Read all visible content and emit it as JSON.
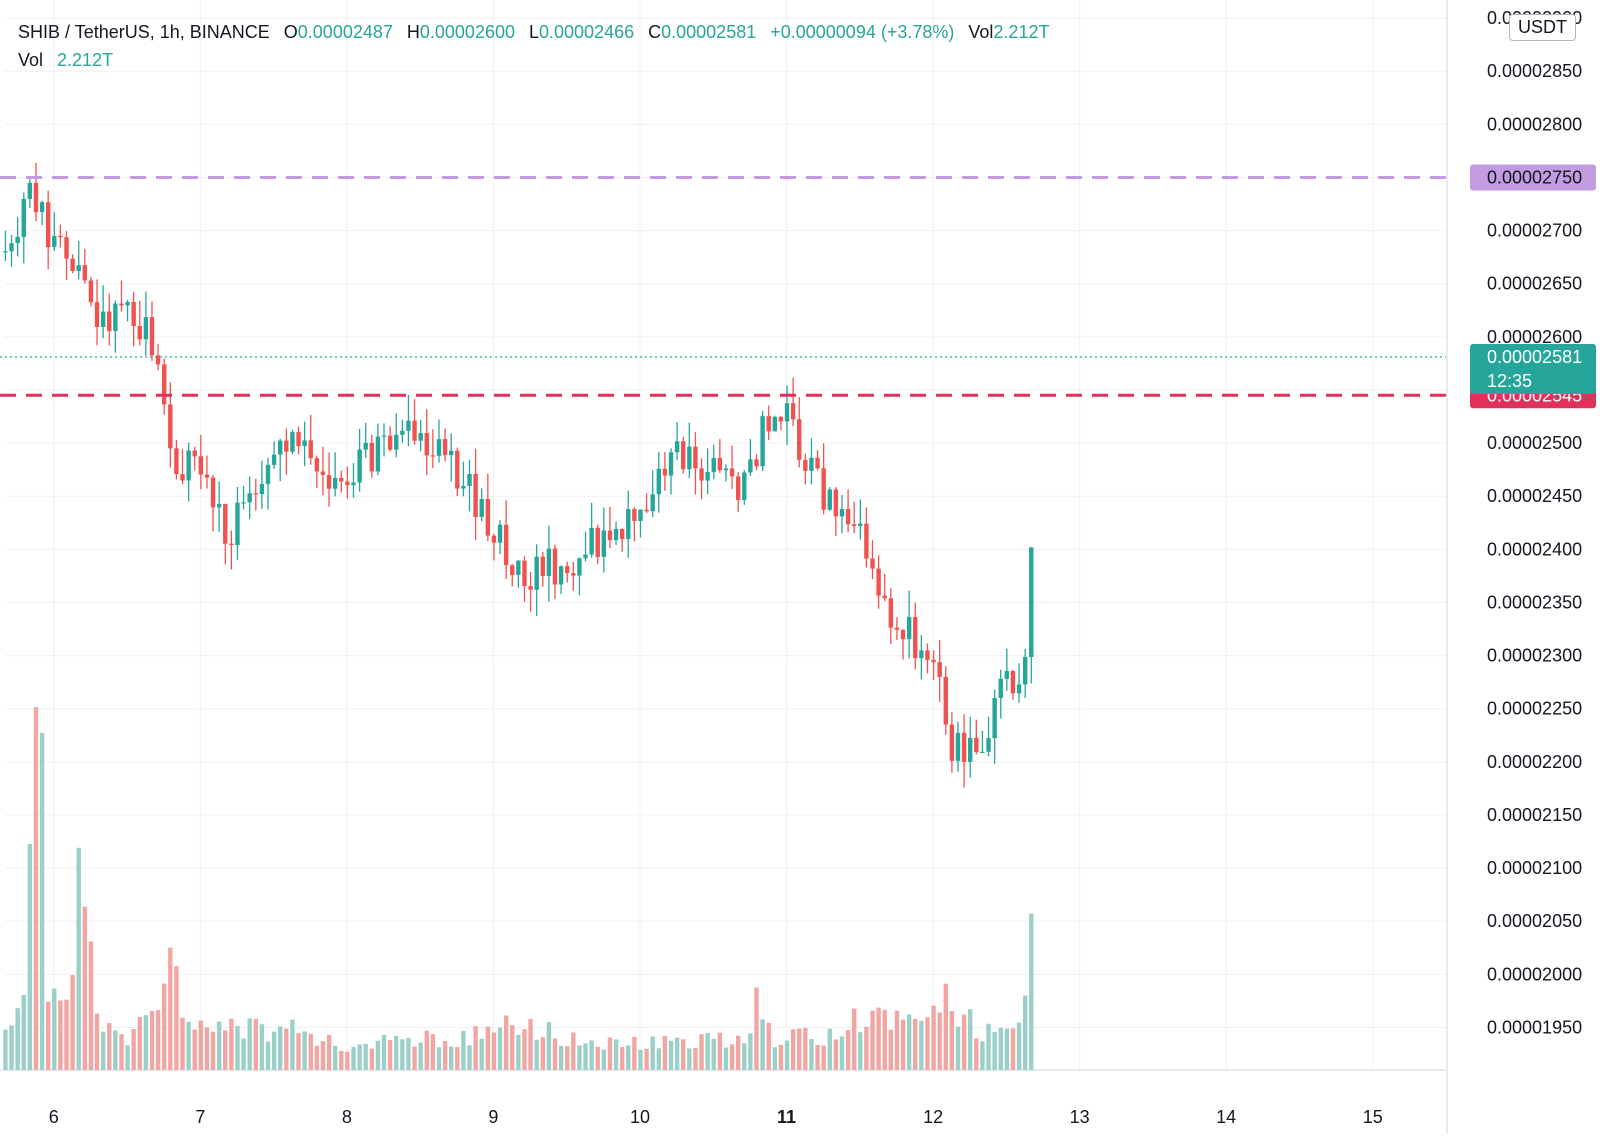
{
  "legend": {
    "pair": "SHIB / TetherUS, 1h, BINANCE",
    "o_label": "O",
    "o_value": "0.00002487",
    "h_label": "H",
    "h_value": "0.00002600",
    "l_label": "L",
    "l_value": "0.00002466",
    "c_label": "C",
    "c_value": "0.00002581",
    "change": "+0.00000094 (+3.78%)",
    "vol_label": "Vol",
    "vol_value": "2.212T",
    "vol_row_label": "Vol",
    "vol_row_value": "2.212T"
  },
  "unit_badge": "USDT",
  "colors": {
    "up": "#26a69a",
    "down": "#ef5350",
    "up_volume": "#9ad0c8",
    "down_volume": "#f2a6a4",
    "resistance": "#c39be0",
    "support": "#e0315a",
    "grid": "#eef0f3",
    "text": "#131722"
  },
  "chart_data": {
    "type": "candlestick",
    "title": "SHIB / TetherUS, 1h, BINANCE",
    "xlabel": "",
    "ylabel": "",
    "x_ticks": [
      "6",
      "7",
      "8",
      "9",
      "10",
      "11",
      "12",
      "13",
      "14",
      "15"
    ],
    "x_tick_values": [
      6,
      7,
      8,
      9,
      10,
      11,
      12,
      13,
      14,
      15
    ],
    "bold_ticks": [
      "11"
    ],
    "y_ticks": [
      "0.00001950",
      "0.00002000",
      "0.00002050",
      "0.00002100",
      "0.00002150",
      "0.00002200",
      "0.00002250",
      "0.00002300",
      "0.00002350",
      "0.00002400",
      "0.00002450",
      "0.00002500",
      "0.00002550",
      "0.00002600",
      "0.00002650",
      "0.00002700",
      "0.00002750",
      "0.00002800",
      "0.00002850",
      "0.00002900"
    ],
    "y_tick_values": [
      1.95e-05,
      2e-05,
      2.05e-05,
      2.1e-05,
      2.15e-05,
      2.2e-05,
      2.25e-05,
      2.3e-05,
      2.35e-05,
      2.4e-05,
      2.45e-05,
      2.5e-05,
      2.55e-05,
      2.6e-05,
      2.65e-05,
      2.7e-05,
      2.75e-05,
      2.8e-05,
      2.85e-05,
      2.9e-05
    ],
    "visible_y_ticks": [
      "0.00001950",
      "0.00002000",
      "0.00002050",
      "0.00002100",
      "0.00002150",
      "0.00002200",
      "0.00002250",
      "0.00002300",
      "0.00002350",
      "0.00002400",
      "0.00002450",
      "0.00002500",
      "0.00002600",
      "0.00002650",
      "0.00002700",
      "0.00002800",
      "0.00002850",
      "0.00002900"
    ],
    "ylim": [
      1.91e-05,
      2.917e-05
    ],
    "xlim": [
      5.667,
      15.5
    ],
    "grid": true,
    "anchors": [
      [
        5.67,
        2.68e-05
      ],
      [
        5.85,
        2.73e-05
      ],
      [
        5.95,
        2.7e-05
      ],
      [
        6.1,
        2.68e-05
      ],
      [
        6.25,
        2.62e-05
      ],
      [
        6.55,
        2.62e-05
      ],
      [
        6.7,
        2.58e-05
      ],
      [
        6.8,
        2.48e-05
      ],
      [
        7.0,
        2.48e-05
      ],
      [
        7.2,
        2.41e-05
      ],
      [
        7.3,
        2.44e-05
      ],
      [
        7.5,
        2.49e-05
      ],
      [
        7.7,
        2.5e-05
      ],
      [
        7.9,
        2.45e-05
      ],
      [
        8.05,
        2.48e-05
      ],
      [
        8.3,
        2.49e-05
      ],
      [
        8.45,
        2.51e-05
      ],
      [
        8.6,
        2.5e-05
      ],
      [
        8.75,
        2.47e-05
      ],
      [
        8.9,
        2.44e-05
      ],
      [
        9.05,
        2.41e-05
      ],
      [
        9.2,
        2.38e-05
      ],
      [
        9.55,
        2.39e-05
      ],
      [
        9.75,
        2.41e-05
      ],
      [
        9.95,
        2.42e-05
      ],
      [
        10.1,
        2.45e-05
      ],
      [
        10.25,
        2.5e-05
      ],
      [
        10.4,
        2.47e-05
      ],
      [
        10.7,
        2.46e-05
      ],
      [
        10.85,
        2.51e-05
      ],
      [
        11.0,
        2.52e-05
      ],
      [
        11.1,
        2.49e-05
      ],
      [
        11.3,
        2.44e-05
      ],
      [
        11.5,
        2.43e-05
      ],
      [
        11.6,
        2.36e-05
      ],
      [
        11.8,
        2.32e-05
      ],
      [
        11.95,
        2.31e-05
      ],
      [
        12.05,
        2.26e-05
      ],
      [
        12.1,
        2.2e-05
      ],
      [
        12.2,
        2.22e-05
      ],
      [
        12.35,
        2.21e-05
      ],
      [
        12.45,
        2.26e-05
      ],
      [
        12.55,
        2.28e-05
      ],
      [
        12.62,
        2.28e-05
      ],
      [
        12.66,
        2.34e-05
      ],
      [
        12.69,
        2.49e-05
      ],
      [
        12.71,
        2.58e-05
      ]
    ],
    "volume_profile": [
      [
        5.67,
        0.4
      ],
      [
        5.8,
        0.8
      ],
      [
        5.85,
        2.4
      ],
      [
        5.9,
        4.0
      ],
      [
        5.95,
        1.0
      ],
      [
        6.05,
        0.6
      ],
      [
        6.2,
        2.0
      ],
      [
        6.3,
        0.5
      ],
      [
        6.5,
        0.3
      ],
      [
        6.7,
        0.6
      ],
      [
        6.8,
        1.0
      ],
      [
        6.95,
        0.5
      ],
      [
        7.3,
        0.4
      ],
      [
        7.6,
        0.4
      ],
      [
        8.0,
        0.25
      ],
      [
        8.5,
        0.3
      ],
      [
        9.0,
        0.35
      ],
      [
        9.15,
        0.5
      ],
      [
        9.5,
        0.3
      ],
      [
        10.0,
        0.25
      ],
      [
        10.5,
        0.3
      ],
      [
        10.75,
        0.35
      ],
      [
        10.8,
        0.9
      ],
      [
        10.9,
        0.3
      ],
      [
        11.3,
        0.35
      ],
      [
        11.6,
        0.6
      ],
      [
        11.9,
        0.45
      ],
      [
        12.1,
        0.7
      ],
      [
        12.3,
        0.4
      ],
      [
        12.6,
        0.4
      ],
      [
        12.66,
        1.0
      ],
      [
        12.7,
        2.6
      ],
      [
        12.72,
        2.4
      ]
    ],
    "series": [],
    "horizontal_lines": [
      {
        "label": "0.00002750",
        "value": 2.75e-05,
        "style": "dashed",
        "color": "#c39be0"
      },
      {
        "label": "0.00002545",
        "value": 2.545e-05,
        "style": "dashed",
        "color": "#e0315a"
      }
    ],
    "last_price": {
      "label": "0.00002581",
      "countdown": "12:35",
      "value": 2.581e-05,
      "style": "dotted",
      "color": "#26a69a"
    }
  }
}
